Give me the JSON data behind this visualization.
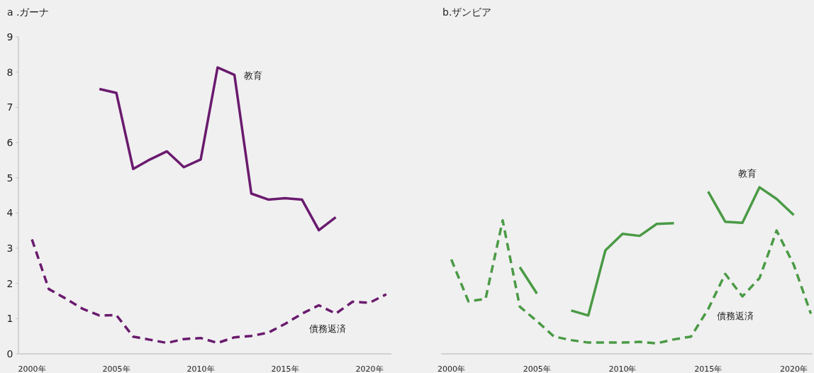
{
  "chart_data": [
    {
      "type": "line",
      "title": "a .ガーナ",
      "x": [
        2000,
        2001,
        2002,
        2003,
        2004,
        2005,
        2006,
        2007,
        2008,
        2009,
        2010,
        2011,
        2012,
        2013,
        2014,
        2015,
        2016,
        2017,
        2018,
        2019,
        2020,
        2021
      ],
      "series": [
        {
          "name": "教育",
          "color": "#6a1a6e",
          "line_style": "solid",
          "values": [
            null,
            null,
            null,
            null,
            7.52,
            7.41,
            5.25,
            5.52,
            5.75,
            5.3,
            5.52,
            8.13,
            7.92,
            4.55,
            4.38,
            4.42,
            4.38,
            3.51,
            3.88,
            null,
            null,
            null
          ]
        },
        {
          "name": "債務返済",
          "color": "#6a1a6e",
          "line_style": "dashed",
          "values": [
            3.25,
            1.84,
            1.57,
            1.28,
            1.09,
            1.1,
            0.49,
            0.4,
            0.31,
            0.42,
            0.45,
            0.31,
            0.47,
            0.51,
            0.6,
            0.85,
            1.14,
            1.38,
            1.14,
            1.48,
            1.45,
            1.69
          ]
        }
      ],
      "xlim": [
        1999.2,
        2021.3
      ],
      "xticks": [
        {
          "value": 2000,
          "label": "2000年"
        },
        {
          "value": 2005,
          "label": "2005年"
        },
        {
          "value": 2010,
          "label": "2010年"
        },
        {
          "value": 2015,
          "label": "2015年"
        },
        {
          "value": 2020,
          "label": "2020年"
        }
      ],
      "ylim": [
        0,
        9
      ],
      "yticks": [
        0,
        1,
        2,
        3,
        4,
        5,
        6,
        7,
        8,
        9
      ]
    },
    {
      "type": "line",
      "title": "b.ザンビア",
      "x": [
        2000,
        2001,
        2002,
        2003,
        2004,
        2005,
        2006,
        2007,
        2008,
        2009,
        2010,
        2011,
        2012,
        2013,
        2014,
        2015,
        2016,
        2017,
        2018,
        2019,
        2020,
        2021
      ],
      "series": [
        {
          "name": "教育",
          "color": "#4a9a45",
          "line_style": "solid",
          "values": [
            null,
            null,
            null,
            null,
            2.46,
            1.71,
            null,
            1.23,
            1.09,
            2.94,
            3.41,
            3.35,
            3.69,
            3.71,
            null,
            4.61,
            3.75,
            3.72,
            4.73,
            4.4,
            3.94,
            null
          ]
        },
        {
          "name": "債務返済",
          "color": "#4a9a45",
          "line_style": "dashed",
          "values": [
            2.68,
            1.49,
            1.56,
            3.79,
            1.34,
            0.93,
            0.49,
            0.39,
            0.32,
            0.32,
            0.32,
            0.34,
            0.3,
            0.41,
            0.49,
            1.27,
            2.27,
            1.63,
            2.15,
            3.5,
            2.53,
            1.14
          ]
        }
      ],
      "xlim": [
        1999.4,
        2021.1
      ],
      "xticks": [
        {
          "value": 2000,
          "label": "2000年"
        },
        {
          "value": 2005,
          "label": "2005年"
        },
        {
          "value": 2010,
          "label": "2010年"
        },
        {
          "value": 2015,
          "label": "2015年"
        },
        {
          "value": 2020,
          "label": "2020年"
        }
      ],
      "ylim": [
        0,
        9
      ],
      "tick_labels": "x"
    }
  ]
}
